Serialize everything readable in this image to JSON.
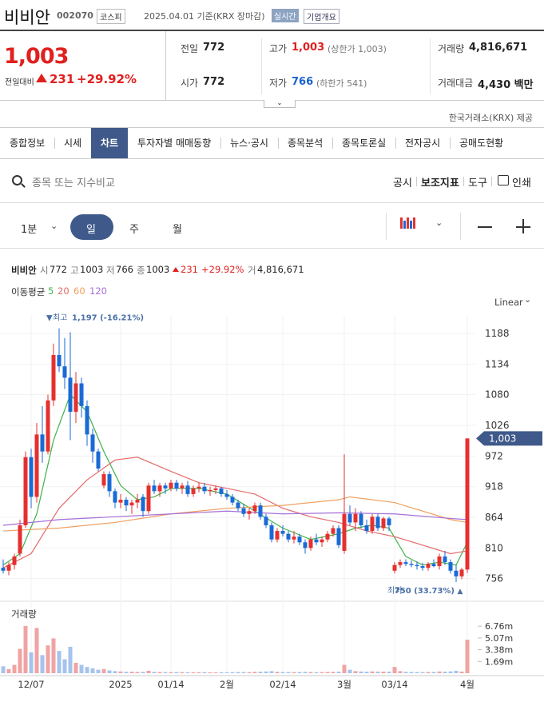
{
  "header": {
    "name": "비비안",
    "code": "002070",
    "market": "코스피",
    "date": "2025.04.01 기준(KRX 장마감)",
    "realtime": "실시간",
    "overview": "기업개요"
  },
  "quote": {
    "price": "1,003",
    "change_label": "전일대비",
    "change": "231",
    "change_pct": "+29.92%",
    "items": [
      {
        "label": "전일",
        "value": "772"
      },
      {
        "label": "고가",
        "value": "1,003",
        "note": "(상한가 1,003)",
        "color": "#e0201f"
      },
      {
        "label": "거래량",
        "value": "4,816,671"
      },
      {
        "label": "시가",
        "value": "772"
      },
      {
        "label": "저가",
        "value": "766",
        "note": "(하한가 541)",
        "color": "#1a62d0"
      },
      {
        "label": "거래대금",
        "value": "4,430 백만"
      }
    ]
  },
  "source": "한국거래소(KRX) 제공",
  "tabs": [
    "종합정보",
    "시세",
    "차트",
    "투자자별 매매동향",
    "뉴스·공시",
    "종목분석",
    "종목토론실",
    "전자공시",
    "공매도현황"
  ],
  "active_tab": 2,
  "search_placeholder": "종목 또는 지수비교",
  "tools": [
    "공시",
    "보조지표",
    "도구",
    "인쇄"
  ],
  "periods": [
    "1분",
    "일",
    "주",
    "월"
  ],
  "active_period": 1,
  "info": {
    "name": "비비안",
    "fields": [
      [
        "시",
        "772"
      ],
      [
        "고",
        "1003"
      ],
      [
        "저",
        "766"
      ],
      [
        "종",
        "1003"
      ]
    ],
    "change": "231",
    "change_pct": "+29.92%",
    "volume_label": "거",
    "volume": "4,816,671"
  },
  "chart_data": {
    "type": "candlestick",
    "ma_title": "이동평균",
    "scale": "Linear",
    "volume_title": "거래량",
    "up_color": "#e5302f",
    "down_color": "#1a6ad6",
    "up_volume_color": "#f0a3a3",
    "down_volume_color": "#a5c3ec",
    "categories": [
      null,
      null,
      null,
      null,
      null,
      "12/07",
      null,
      null,
      null,
      null,
      null,
      null,
      null,
      null,
      null,
      null,
      null,
      null,
      null,
      null,
      null,
      "2025",
      null,
      null,
      null,
      null,
      null,
      null,
      null,
      null,
      "01/14",
      null,
      null,
      null,
      null,
      null,
      null,
      null,
      null,
      null,
      "2월",
      null,
      null,
      null,
      null,
      null,
      null,
      null,
      null,
      null,
      "02/14",
      null,
      null,
      null,
      null,
      null,
      null,
      null,
      null,
      null,
      null,
      "3월",
      null,
      null,
      null,
      null,
      null,
      null,
      null,
      null,
      "03/14",
      null,
      null,
      null,
      null,
      null,
      null,
      null,
      null,
      null,
      null,
      null,
      null,
      "4월"
    ],
    "ohlc": [
      [
        775,
        790,
        765,
        770
      ],
      [
        770,
        785,
        762,
        780
      ],
      [
        780,
        800,
        772,
        795
      ],
      [
        800,
        860,
        795,
        850
      ],
      [
        850,
        980,
        845,
        970
      ],
      [
        970,
        985,
        880,
        900
      ],
      [
        900,
        1030,
        890,
        1010
      ],
      [
        1010,
        1060,
        960,
        980
      ],
      [
        980,
        1080,
        975,
        1070
      ],
      [
        1070,
        1170,
        1060,
        1150
      ],
      [
        1150,
        1197,
        1120,
        1130
      ],
      [
        1130,
        1180,
        1090,
        1110
      ],
      [
        1110,
        1190,
        1000,
        1050
      ],
      [
        1050,
        1120,
        1030,
        1100
      ],
      [
        1100,
        1110,
        1040,
        1060
      ],
      [
        1060,
        1070,
        990,
        1010
      ],
      [
        1010,
        1020,
        960,
        980
      ],
      [
        980,
        985,
        945,
        950
      ],
      [
        920,
        945,
        915,
        940
      ],
      [
        940,
        945,
        900,
        910
      ],
      [
        910,
        915,
        880,
        890
      ],
      [
        890,
        905,
        880,
        895
      ],
      [
        895,
        900,
        875,
        885
      ],
      [
        885,
        895,
        870,
        890
      ],
      [
        890,
        905,
        880,
        895
      ],
      [
        900,
        905,
        865,
        875
      ],
      [
        875,
        925,
        870,
        920
      ],
      [
        920,
        930,
        905,
        910
      ],
      [
        910,
        925,
        900,
        920
      ],
      [
        920,
        925,
        905,
        915
      ],
      [
        915,
        930,
        910,
        925
      ],
      [
        925,
        930,
        910,
        915
      ],
      [
        915,
        925,
        905,
        920
      ],
      [
        920,
        928,
        900,
        905
      ],
      [
        905,
        920,
        900,
        915
      ],
      [
        915,
        925,
        908,
        918
      ],
      [
        918,
        925,
        905,
        910
      ],
      [
        910,
        918,
        902,
        912
      ],
      [
        912,
        920,
        905,
        915
      ],
      [
        915,
        918,
        900,
        905
      ],
      [
        905,
        912,
        895,
        900
      ],
      [
        900,
        905,
        885,
        890
      ],
      [
        890,
        895,
        875,
        880
      ],
      [
        880,
        888,
        865,
        870
      ],
      [
        870,
        880,
        860,
        875
      ],
      [
        875,
        890,
        870,
        885
      ],
      [
        885,
        890,
        860,
        865
      ],
      [
        865,
        870,
        845,
        850
      ],
      [
        850,
        855,
        820,
        825
      ],
      [
        825,
        845,
        820,
        840
      ],
      [
        840,
        850,
        830,
        835
      ],
      [
        835,
        840,
        820,
        825
      ],
      [
        825,
        840,
        818,
        830
      ],
      [
        830,
        835,
        815,
        820
      ],
      [
        820,
        825,
        800,
        810
      ],
      [
        810,
        830,
        805,
        825
      ],
      [
        825,
        835,
        815,
        820
      ],
      [
        820,
        830,
        812,
        825
      ],
      [
        825,
        840,
        820,
        835
      ],
      [
        835,
        850,
        830,
        845
      ],
      [
        845,
        850,
        810,
        815
      ],
      [
        805,
        975,
        800,
        870
      ],
      [
        870,
        885,
        850,
        855
      ],
      [
        855,
        880,
        840,
        870
      ],
      [
        870,
        875,
        845,
        850
      ],
      [
        850,
        860,
        835,
        840
      ],
      [
        840,
        870,
        835,
        865
      ],
      [
        865,
        870,
        840,
        845
      ],
      [
        845,
        865,
        840,
        862
      ],
      [
        862,
        865,
        840,
        850
      ],
      [
        770,
        785,
        765,
        780
      ],
      [
        780,
        790,
        775,
        785
      ],
      [
        785,
        790,
        778,
        782
      ],
      [
        782,
        788,
        776,
        780
      ],
      [
        780,
        786,
        772,
        778
      ],
      [
        778,
        784,
        770,
        775
      ],
      [
        775,
        785,
        770,
        782
      ],
      [
        782,
        790,
        776,
        778
      ],
      [
        778,
        800,
        772,
        795
      ],
      [
        795,
        805,
        780,
        785
      ],
      [
        785,
        790,
        765,
        770
      ],
      [
        770,
        780,
        750,
        760
      ],
      [
        760,
        775,
        755,
        772
      ],
      [
        772,
        1003,
        766,
        1003
      ]
    ],
    "volume": [
      1000000,
      600000,
      1200000,
      3500000,
      6800000,
      3000000,
      6500000,
      2600000,
      4000000,
      5000000,
      3200000,
      2000000,
      3800000,
      1500000,
      1200000,
      900000,
      700000,
      500000,
      600000,
      400000,
      300000,
      250000,
      200000,
      220000,
      180000,
      200000,
      350000,
      200000,
      180000,
      160000,
      150000,
      170000,
      160000,
      150000,
      140000,
      150000,
      160000,
      140000,
      130000,
      150000,
      140000,
      160000,
      180000,
      170000,
      150000,
      200000,
      220000,
      250000,
      300000,
      200000,
      180000,
      170000,
      160000,
      180000,
      200000,
      170000,
      150000,
      160000,
      180000,
      200000,
      220000,
      1200000,
      500000,
      300000,
      250000,
      220000,
      260000,
      240000,
      230000,
      220000,
      900000,
      300000,
      200000,
      180000,
      170000,
      160000,
      180000,
      190000,
      250000,
      220000,
      260000,
      350000,
      230000,
      4816671
    ],
    "ma_series": [
      {
        "name": "5",
        "color": "#3fb24a",
        "x": [
          0,
          3,
          6,
          9,
          12,
          15,
          18,
          21,
          24,
          27,
          30,
          35,
          40,
          45,
          50,
          55,
          60,
          63,
          66,
          69,
          72,
          75,
          78,
          81,
          83
        ],
        "values": [
          780,
          800,
          870,
          1000,
          1080,
          1050,
          980,
          920,
          895,
          900,
          915,
          915,
          905,
          875,
          845,
          825,
          835,
          845,
          850,
          845,
          795,
          780,
          785,
          780,
          820
        ]
      },
      {
        "name": "20",
        "color": "#e46a6a",
        "x": [
          0,
          5,
          10,
          15,
          20,
          24,
          30,
          35,
          40,
          45,
          50,
          55,
          60,
          65,
          70,
          75,
          80,
          83
        ],
        "values": [
          775,
          800,
          880,
          930,
          965,
          970,
          945,
          925,
          915,
          905,
          880,
          865,
          855,
          840,
          830,
          815,
          800,
          805
        ]
      },
      {
        "name": "60",
        "color": "#f0a060",
        "x": [
          0,
          10,
          20,
          30,
          40,
          50,
          60,
          62,
          70,
          80,
          83
        ],
        "values": [
          840,
          845,
          855,
          870,
          880,
          885,
          895,
          900,
          890,
          860,
          855
        ]
      },
      {
        "name": "120",
        "color": "#a66fd8",
        "x": [
          0,
          10,
          20,
          30,
          40,
          50,
          60,
          70,
          80,
          83
        ],
        "values": [
          850,
          860,
          865,
          870,
          875,
          870,
          872,
          870,
          862,
          860
        ]
      }
    ],
    "ylim": [
      726,
      1219
    ],
    "yticks": [
      756,
      810,
      864,
      918,
      972,
      1026,
      1080,
      1134,
      1188
    ],
    "vol_ylim": [
      0,
      7700000
    ],
    "vol_ticks": [
      {
        "value": 1690000,
        "label": "1.69m"
      },
      {
        "value": 3380000,
        "label": "3.38m"
      },
      {
        "value": 5070000,
        "label": "5.07m"
      },
      {
        "value": 6760000,
        "label": "6.76m"
      }
    ],
    "last_price": {
      "value": 1003,
      "label": "1,003"
    },
    "high_note": {
      "prefix": "최고",
      "value": 1197,
      "label": "1,197 (-16.21%)",
      "index": 10
    },
    "low_note": {
      "prefix": "최저",
      "value": 750,
      "label": "750 (33.73%)",
      "index": 81
    },
    "grid": true
  }
}
